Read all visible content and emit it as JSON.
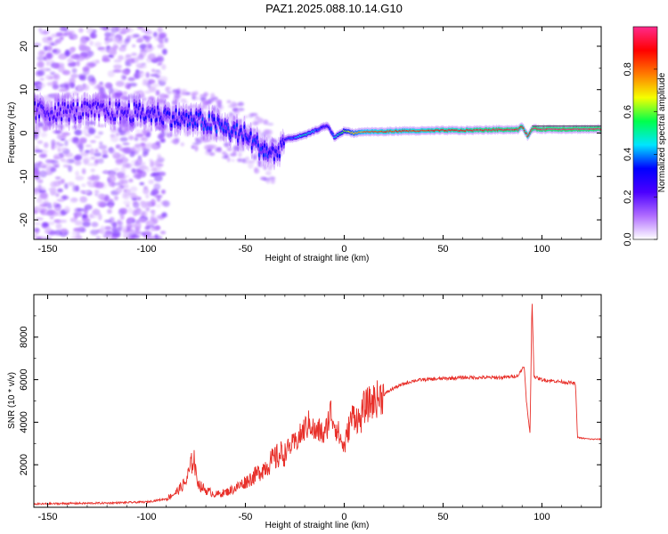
{
  "title": "PAZ1.2025.088.10.14.G10",
  "spectrogram": {
    "xlabel": "Height of straight line (km)",
    "ylabel": "Frequency (Hz)",
    "xlim": [
      -157,
      130
    ],
    "ylim": [
      -24.5,
      24.5
    ],
    "xticks": [
      -150,
      -100,
      -50,
      0,
      50,
      100
    ],
    "yticks": [
      -20,
      -10,
      0,
      10,
      20
    ],
    "colorbar": {
      "label": "Normalized spectral amplitude",
      "ticks": [
        0.0,
        0.2,
        0.4,
        0.6,
        0.8
      ],
      "tick_labels": [
        "0.0",
        "0.2",
        "0.4",
        "0.6",
        "0.8"
      ],
      "range": [
        0,
        1
      ],
      "colormap": [
        "#ffffff",
        "#b06cff",
        "#4b00ff",
        "#0000ff",
        "#00e6ff",
        "#00ff4c",
        "#f5ff00",
        "#ff7a00",
        "#ff0000",
        "#ff2a8c"
      ]
    }
  },
  "chart_data": [
    {
      "type": "heatmap",
      "xlabel": "Height of straight line (km)",
      "ylabel": "Frequency (Hz)",
      "xlim": [
        -157,
        130
      ],
      "ylim": [
        -24.5,
        24.5
      ],
      "colorbar_label": "Normalized spectral amplitude",
      "ridge": {
        "x": [
          -157,
          -140,
          -120,
          -100,
          -90,
          -80,
          -70,
          -60,
          -50,
          -45,
          -40,
          -35,
          -30,
          -25,
          -20,
          -15,
          -10,
          -8,
          -5,
          0,
          5,
          10,
          20,
          30,
          40,
          50,
          60,
          70,
          80,
          88,
          90,
          93,
          95,
          100,
          110,
          120,
          130
        ],
        "frequency": [
          5,
          5,
          5,
          4.5,
          4,
          3,
          2.5,
          1,
          -0.5,
          -2.5,
          -4,
          -5,
          -1.5,
          -1,
          -0.5,
          0.5,
          1.5,
          1.5,
          -1,
          0.5,
          0,
          0.3,
          0.3,
          0.5,
          0.5,
          0.6,
          0.6,
          0.7,
          0.8,
          0.8,
          1.5,
          -0.8,
          1,
          0.9,
          0.9,
          0.9,
          0.9
        ],
        "amplitude": [
          0.25,
          0.25,
          0.25,
          0.3,
          0.3,
          0.32,
          0.35,
          0.35,
          0.32,
          0.35,
          0.35,
          0.3,
          0.3,
          0.38,
          0.5,
          0.4,
          0.3,
          0.3,
          0.45,
          0.6,
          0.7,
          0.8,
          0.85,
          0.85,
          0.85,
          0.9,
          0.9,
          0.95,
          0.95,
          0.95,
          0.9,
          0.9,
          0.95,
          0.98,
          0.98,
          0.98,
          0.98
        ]
      }
    },
    {
      "type": "line",
      "xlabel": "Height of straight line (km)",
      "ylabel": "SNR (10 * v/v)",
      "xlim": [
        -157,
        130
      ],
      "ylim": [
        0,
        10000
      ],
      "xticks": [
        -150,
        -100,
        -50,
        0,
        50,
        100
      ],
      "yticks": [
        2000,
        4000,
        6000,
        8000
      ],
      "color": "#e8302a",
      "series": [
        {
          "x": [
            -157,
            -140,
            -120,
            -100,
            -90,
            -85,
            -80,
            -78,
            -76,
            -75,
            -73,
            -70,
            -65,
            -60,
            -55,
            -50,
            -45,
            -40,
            -35,
            -30,
            -27,
            -25,
            -22,
            -20,
            -17,
            -15,
            -12,
            -10,
            -7,
            -5,
            -3,
            -1,
            0,
            3,
            5,
            8,
            10,
            15,
            20,
            25,
            30,
            35,
            40,
            50,
            60,
            70,
            80,
            85,
            88,
            90,
            91,
            92,
            93,
            94,
            95,
            96,
            97,
            100,
            105,
            110,
            115,
            117,
            118,
            120,
            125,
            130
          ],
          "y": [
            150,
            180,
            200,
            250,
            400,
            700,
            1200,
            1800,
            2400,
            1500,
            1000,
            800,
            600,
            700,
            900,
            1200,
            1500,
            1900,
            2300,
            2600,
            2900,
            3000,
            3400,
            3700,
            4000,
            3500,
            3600,
            3300,
            4500,
            4000,
            3500,
            3000,
            2800,
            4000,
            4400,
            4000,
            4700,
            5000,
            5300,
            5600,
            5800,
            5950,
            6000,
            6050,
            6100,
            6100,
            6100,
            6150,
            6200,
            6500,
            6700,
            5200,
            4200,
            3500,
            9800,
            6200,
            6100,
            6000,
            5950,
            5900,
            5850,
            5800,
            3300,
            3250,
            3200,
            3200
          ]
        }
      ]
    }
  ],
  "snr_plot": {
    "xlabel": "Height of straight line (km)",
    "ylabel": "SNR (10 * v/v)",
    "xlim": [
      -157,
      130
    ],
    "ylim": [
      0,
      10000
    ],
    "xticks": [
      -150,
      -100,
      -50,
      0,
      50,
      100
    ],
    "yticks": [
      2000,
      4000,
      6000,
      8000
    ]
  }
}
